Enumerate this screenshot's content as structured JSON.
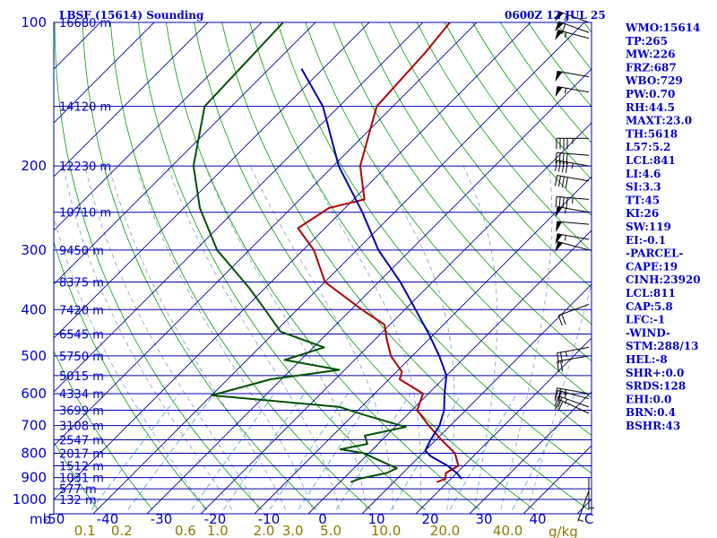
{
  "header": {
    "station": "LBSF (15614) Sounding",
    "time": "0600Z 12 JUL 25"
  },
  "colors": {
    "isobar": "#0000aa",
    "isotherm": "#0000aa",
    "dry_adiabat": "#00a000",
    "moist_adiabat": "#8899cc",
    "mixing_ratio": "#5aaad8",
    "temperature": "#b00000",
    "dewpoint": "#005000",
    "parcel": "#0000b0",
    "label": "#0000cc",
    "mixing_label": "#8b7a00"
  },
  "indices": [
    "WMO:15614",
    "TP:265",
    "MW:226",
    "FRZ:687",
    "WBO:729",
    "PW:0.70",
    "RH:44.5",
    "MAXT:23.0",
    "TH:5618",
    "L57:5.2",
    "LCL:841",
    "LI:4.6",
    "SI:3.3",
    "TT:45",
    "KI:26",
    "SW:119",
    "EI:-0.1",
    "-PARCEL-",
    "CAPE:19",
    "CINH:23920",
    "LCL:811",
    "CAP:5.8",
    "LFC:-1",
    "-WIND-",
    "STM:288/13",
    "HEL:-8",
    "SHR+:0.0",
    "SRDS:128",
    "EHI:0.0",
    "BRN:0.4",
    "BSHR:43"
  ],
  "axis": {
    "pressure_unit": "mb",
    "mixing_unit": "g/kg",
    "zero_mark": "C"
  },
  "chart_data": {
    "type": "line",
    "title": "LBSF (15614) Sounding",
    "subtitle": "0600Z 12 JUL 25",
    "xlabel": "",
    "ylabel": "mb",
    "y_scale": "log",
    "x_ticks": [
      -50,
      -40,
      -30,
      -20,
      -10,
      0,
      10,
      20,
      30,
      40
    ],
    "pressure_ticks": [
      100,
      200,
      300,
      400,
      500,
      600,
      700,
      800,
      900,
      1000
    ],
    "xlim": [
      -50,
      47
    ],
    "ylim": [
      1050,
      100
    ],
    "grid": true,
    "mixing_ratio_labels": [
      "0.1",
      "0.2",
      "0.6",
      "1.0",
      "2.0",
      "3.0",
      "5.0",
      "10.0",
      "20.0",
      "40.0"
    ],
    "heights": [
      {
        "p": 100,
        "label": "16680 m"
      },
      {
        "p": 150,
        "label": "14120 m"
      },
      {
        "p": 200,
        "label": "12230 m"
      },
      {
        "p": 250,
        "label": "10710 m"
      },
      {
        "p": 300,
        "label": "9450 m"
      },
      {
        "p": 350,
        "label": "8375 m"
      },
      {
        "p": 400,
        "label": "7420 m"
      },
      {
        "p": 450,
        "label": "6545 m"
      },
      {
        "p": 500,
        "label": "5750 m"
      },
      {
        "p": 550,
        "label": "5015 m"
      },
      {
        "p": 600,
        "label": "4334 m"
      },
      {
        "p": 650,
        "label": "3699 m"
      },
      {
        "p": 700,
        "label": "3108 m"
      },
      {
        "p": 750,
        "label": "2547 m"
      },
      {
        "p": 800,
        "label": "2017 m"
      },
      {
        "p": 850,
        "label": "1512 m"
      },
      {
        "p": 900,
        "label": "1031 m"
      },
      {
        "p": 950,
        "label": "577 m"
      },
      {
        "p": 1000,
        "label": "132 m"
      }
    ],
    "series": [
      {
        "name": "Temperature",
        "points": [
          {
            "p": 100,
            "t": -65
          },
          {
            "p": 115,
            "t": -64
          },
          {
            "p": 150,
            "t": -63
          },
          {
            "p": 200,
            "t": -55
          },
          {
            "p": 235,
            "t": -48
          },
          {
            "p": 245,
            "t": -53
          },
          {
            "p": 270,
            "t": -55
          },
          {
            "p": 300,
            "t": -48
          },
          {
            "p": 350,
            "t": -40
          },
          {
            "p": 400,
            "t": -28
          },
          {
            "p": 430,
            "t": -21
          },
          {
            "p": 460,
            "t": -18
          },
          {
            "p": 500,
            "t": -14
          },
          {
            "p": 540,
            "t": -9
          },
          {
            "p": 560,
            "t": -8
          },
          {
            "p": 600,
            "t": -1
          },
          {
            "p": 650,
            "t": 1
          },
          {
            "p": 700,
            "t": 6
          },
          {
            "p": 750,
            "t": 11
          },
          {
            "p": 800,
            "t": 16
          },
          {
            "p": 850,
            "t": 19
          },
          {
            "p": 880,
            "t": 18
          },
          {
            "p": 905,
            "t": 19
          },
          {
            "p": 920,
            "t": 18
          }
        ]
      },
      {
        "name": "Dewpoint",
        "points": [
          {
            "p": 100,
            "t": -96
          },
          {
            "p": 150,
            "t": -95
          },
          {
            "p": 200,
            "t": -86
          },
          {
            "p": 245,
            "t": -77
          },
          {
            "p": 300,
            "t": -66
          },
          {
            "p": 360,
            "t": -53
          },
          {
            "p": 400,
            "t": -46
          },
          {
            "p": 445,
            "t": -39
          },
          {
            "p": 480,
            "t": -28
          },
          {
            "p": 510,
            "t": -33
          },
          {
            "p": 535,
            "t": -21
          },
          {
            "p": 560,
            "t": -32
          },
          {
            "p": 605,
            "t": -40
          },
          {
            "p": 640,
            "t": -14
          },
          {
            "p": 665,
            "t": -8
          },
          {
            "p": 705,
            "t": 2
          },
          {
            "p": 735,
            "t": -4
          },
          {
            "p": 765,
            "t": -2
          },
          {
            "p": 785,
            "t": -6
          },
          {
            "p": 800,
            "t": -1
          },
          {
            "p": 840,
            "t": 5
          },
          {
            "p": 860,
            "t": 8
          },
          {
            "p": 880,
            "t": 7
          },
          {
            "p": 905,
            "t": 3
          },
          {
            "p": 920,
            "t": 2
          }
        ]
      },
      {
        "name": "Parcel",
        "points": [
          {
            "p": 125,
            "t": -84
          },
          {
            "p": 150,
            "t": -73
          },
          {
            "p": 200,
            "t": -59
          },
          {
            "p": 250,
            "t": -46
          },
          {
            "p": 300,
            "t": -36
          },
          {
            "p": 350,
            "t": -26
          },
          {
            "p": 400,
            "t": -18
          },
          {
            "p": 450,
            "t": -11
          },
          {
            "p": 500,
            "t": -5
          },
          {
            "p": 550,
            "t": 0
          },
          {
            "p": 600,
            "t": 3
          },
          {
            "p": 650,
            "t": 6
          },
          {
            "p": 700,
            "t": 8
          },
          {
            "p": 750,
            "t": 9
          },
          {
            "p": 790,
            "t": 10
          },
          {
            "p": 811,
            "t": 12
          },
          {
            "p": 850,
            "t": 17
          },
          {
            "p": 880,
            "t": 20
          },
          {
            "p": 905,
            "t": 22
          }
        ]
      }
    ],
    "wind_barbs": [
      {
        "p": 100,
        "dir": 290,
        "kt": 55
      },
      {
        "p": 105,
        "dir": 290,
        "kt": 60
      },
      {
        "p": 108,
        "dir": 285,
        "kt": 55
      },
      {
        "p": 130,
        "dir": 280,
        "kt": 50
      },
      {
        "p": 140,
        "dir": 280,
        "kt": 55
      },
      {
        "p": 175,
        "dir": 270,
        "kt": 45
      },
      {
        "p": 190,
        "dir": 275,
        "kt": 40
      },
      {
        "p": 200,
        "dir": 280,
        "kt": 45
      },
      {
        "p": 215,
        "dir": 280,
        "kt": 40
      },
      {
        "p": 235,
        "dir": 275,
        "kt": 45
      },
      {
        "p": 250,
        "dir": 280,
        "kt": 55
      },
      {
        "p": 265,
        "dir": 275,
        "kt": 50
      },
      {
        "p": 285,
        "dir": 280,
        "kt": 55
      },
      {
        "p": 300,
        "dir": 285,
        "kt": 50
      },
      {
        "p": 390,
        "dir": 250,
        "kt": 20
      },
      {
        "p": 480,
        "dir": 260,
        "kt": 25
      },
      {
        "p": 500,
        "dir": 260,
        "kt": 20
      },
      {
        "p": 600,
        "dir": 280,
        "kt": 25
      },
      {
        "p": 615,
        "dir": 285,
        "kt": 25
      },
      {
        "p": 640,
        "dir": 290,
        "kt": 25
      },
      {
        "p": 660,
        "dir": 295,
        "kt": 20
      },
      {
        "p": 900,
        "dir": 180,
        "kt": 5
      },
      {
        "p": 960,
        "dir": 200,
        "kt": 5
      }
    ]
  }
}
